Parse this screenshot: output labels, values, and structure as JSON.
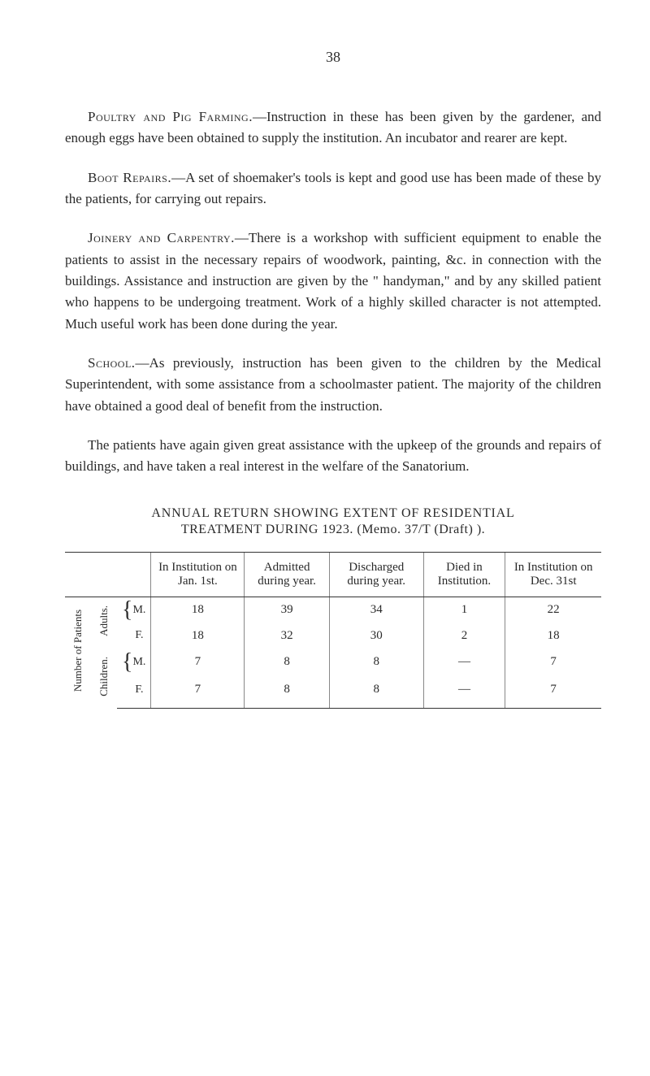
{
  "pageNumber": "38",
  "paragraphs": {
    "p1_lead": "Poultry and Pig Farming.",
    "p1_body": "—Instruction in these has been given by the gardener, and enough eggs have been obtained to supply the institution. An incubator and rearer are kept.",
    "p2_lead": "Boot Repairs.",
    "p2_body": "—A set of shoemaker's tools is kept and good use has been made of these by the patients, for carrying out repairs.",
    "p3_lead": "Joinery and Carpentry.",
    "p3_body": "—There is a workshop with sufficient equipment to enable the patients to assist in the necessary repairs of woodwork, painting, &c. in connection with the buildings. Assistance and instruction are given by the \" handyman,\" and by any skilled patient who happens to be undergoing treatment. Work of a highly skilled character is not attempted. Much useful work has been done during the year.",
    "p4_lead": "School.",
    "p4_body": "—As previously, instruction has been given to the children by the Medical Superintendent, with some assistance from a schoolmaster patient. The majority of the children have obtained a good deal of benefit from the instruction.",
    "p5": "The patients have again given great assistance with the upkeep of the grounds and repairs of buildings, and have taken a real interest in the welfare of the Sanatorium."
  },
  "tableSection": {
    "heading": "ANNUAL RETURN SHOWING EXTENT OF RESIDENTIAL",
    "subheading": "TREATMENT DURING 1923.   (Memo. 37/T (Draft) ).",
    "colHeaders": {
      "c1": "In Institution on Jan. 1st.",
      "c2": "Admitted during year.",
      "c3": "Discharged during year.",
      "c4": "Died in Institution.",
      "c5": "In Institution on Dec. 31st"
    },
    "rowGroups": {
      "outer": "Number of Patients",
      "adults": "Adults.",
      "children": "Children."
    },
    "rowLabels": {
      "m": "M.",
      "f": "F."
    },
    "rows": [
      {
        "label": "M.",
        "c1": "18",
        "c2": "39",
        "c3": "34",
        "c4": "1",
        "c5": "22"
      },
      {
        "label": "F.",
        "c1": "18",
        "c2": "32",
        "c3": "30",
        "c4": "2",
        "c5": "18"
      },
      {
        "label": "M.",
        "c1": "7",
        "c2": "8",
        "c3": "8",
        "c4": "—",
        "c5": "7"
      },
      {
        "label": "F.",
        "c1": "7",
        "c2": "8",
        "c3": "8",
        "c4": "—",
        "c5": "7"
      }
    ]
  }
}
